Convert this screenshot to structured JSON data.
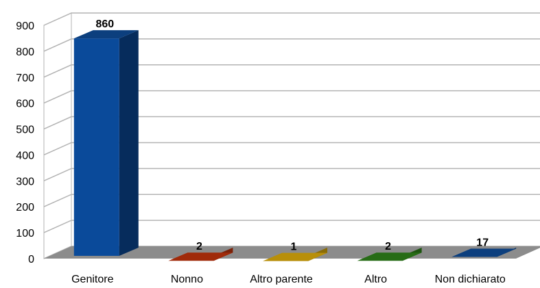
{
  "chart_data": {
    "type": "bar",
    "three_d": true,
    "categories": [
      "Genitore",
      "Nonno",
      "Altro parente",
      "Altro",
      "Non dichiarato"
    ],
    "values": [
      860,
      2,
      1,
      2,
      17
    ],
    "data_labels": [
      "860",
      "2",
      "1",
      "2",
      "17"
    ],
    "y_ticks": [
      "0",
      "100",
      "200",
      "300",
      "400",
      "500",
      "600",
      "700",
      "800",
      "900"
    ],
    "ylim": [
      0,
      900
    ],
    "grid": true,
    "legend": "none",
    "title": "",
    "xlabel": "",
    "ylabel": "",
    "colors": {
      "bars": [
        "#0a4a9a",
        "#c1330c",
        "#d9a80b",
        "#2f7f1a",
        "#0a4a9a"
      ],
      "bar_sides": [
        "#062c5c",
        "#7a2108",
        "#8a6c07",
        "#1d5410",
        "#062c5c"
      ],
      "bar_tops": [
        "#0c3f7e",
        "#a02a0a",
        "#b88f0a",
        "#276c16",
        "#0c3f7e"
      ],
      "floor": "#8c8c8c",
      "grid": "#b3b3b3",
      "wall": "#ffffff",
      "axis_text": "#000000"
    }
  }
}
